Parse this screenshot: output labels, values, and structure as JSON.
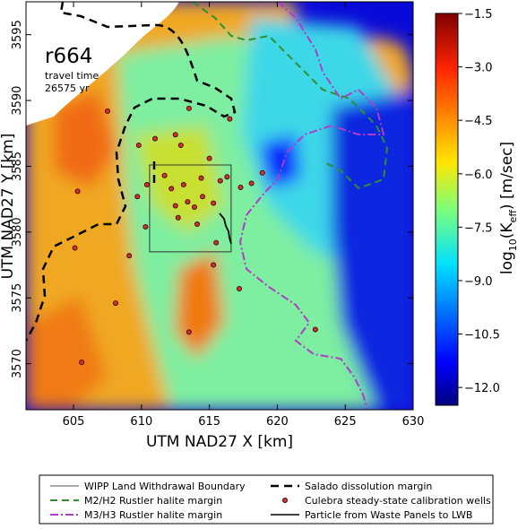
{
  "chart_data": {
    "type": "heatmap",
    "annotation": {
      "run": "r664",
      "line1": "travel time",
      "line2": "26575 yr"
    },
    "xlabel": "UTM NAD27 X [km]",
    "ylabel": "UTM NAD27 Y [km]",
    "xlim": [
      601.5,
      630
    ],
    "ylim": [
      3566.5,
      3597.5
    ],
    "xticks": [
      605,
      610,
      615,
      620,
      625,
      630
    ],
    "yticks": [
      3570,
      3575,
      3580,
      3585,
      3590,
      3595
    ],
    "colorbar": {
      "label_main": "log",
      "label_sub": "10",
      "label_rest": "(K",
      "label_k_sub": "eff",
      "label_units": ") [m/sec]",
      "range": [
        -12.5,
        -1.5
      ],
      "ticks": [
        -1.5,
        -3.0,
        -4.5,
        -6.0,
        -7.5,
        -9.0,
        -10.5,
        -12.0
      ],
      "tick_labels": [
        "−1.5",
        "−3.0",
        "−4.5",
        "−6.0",
        "−7.5",
        "−9.0",
        "−10.5",
        "−12.0"
      ],
      "colormap": "jet"
    },
    "wipp_boundary": {
      "x": [
        610.6,
        616.6
      ],
      "y": [
        3578.5,
        3585.1
      ]
    },
    "calibration_wells": [
      [
        607.5,
        3589.2
      ],
      [
        609.8,
        3586.6
      ],
      [
        611.0,
        3587.1
      ],
      [
        612.5,
        3587.4
      ],
      [
        613.5,
        3589.4
      ],
      [
        612.9,
        3586.6
      ],
      [
        616.5,
        3588.6
      ],
      [
        609.7,
        3582.7
      ],
      [
        610.4,
        3583.6
      ],
      [
        610.3,
        3580.4
      ],
      [
        611.7,
        3584.3
      ],
      [
        612.2,
        3583.3
      ],
      [
        612.5,
        3582.0
      ],
      [
        612.7,
        3581.1
      ],
      [
        613.1,
        3583.6
      ],
      [
        613.4,
        3582.3
      ],
      [
        613.9,
        3581.9
      ],
      [
        614.1,
        3580.6
      ],
      [
        614.5,
        3582.7
      ],
      [
        614.4,
        3584.1
      ],
      [
        615.3,
        3582.2
      ],
      [
        615.8,
        3583.9
      ],
      [
        616.3,
        3584.2
      ],
      [
        617.3,
        3583.4
      ],
      [
        618.1,
        3583.7
      ],
      [
        618.9,
        3584.5
      ],
      [
        615.0,
        3585.6
      ],
      [
        605.3,
        3583.1
      ],
      [
        605.1,
        3578.8
      ],
      [
        609.1,
        3578.2
      ],
      [
        615.3,
        3577.5
      ],
      [
        617.2,
        3575.7
      ],
      [
        608.1,
        3574.6
      ],
      [
        605.6,
        3570.1
      ],
      [
        613.5,
        3572.4
      ],
      [
        622.8,
        3572.6
      ],
      [
        615.5,
        3579.2
      ]
    ],
    "legend": [
      {
        "label": "WIPP Land Withdrawal Boundary",
        "style": "thin-solid",
        "color": "#555555"
      },
      {
        "label": "Salado dissolution margin",
        "style": "dashed-black",
        "color": "#000000"
      },
      {
        "label": "M2/H2 Rustler halite margin",
        "style": "dashed-green",
        "color": "#2f8f2f"
      },
      {
        "label": "Culebra steady-state calibration wells",
        "style": "marker",
        "color": "#c83232"
      },
      {
        "label": "M3/H3 Rustler halite margin",
        "style": "dashdot-purple",
        "color": "#b03cc8"
      },
      {
        "label": "Particle from Waste Panels to LWB",
        "style": "solid-black",
        "color": "#000000"
      }
    ]
  }
}
